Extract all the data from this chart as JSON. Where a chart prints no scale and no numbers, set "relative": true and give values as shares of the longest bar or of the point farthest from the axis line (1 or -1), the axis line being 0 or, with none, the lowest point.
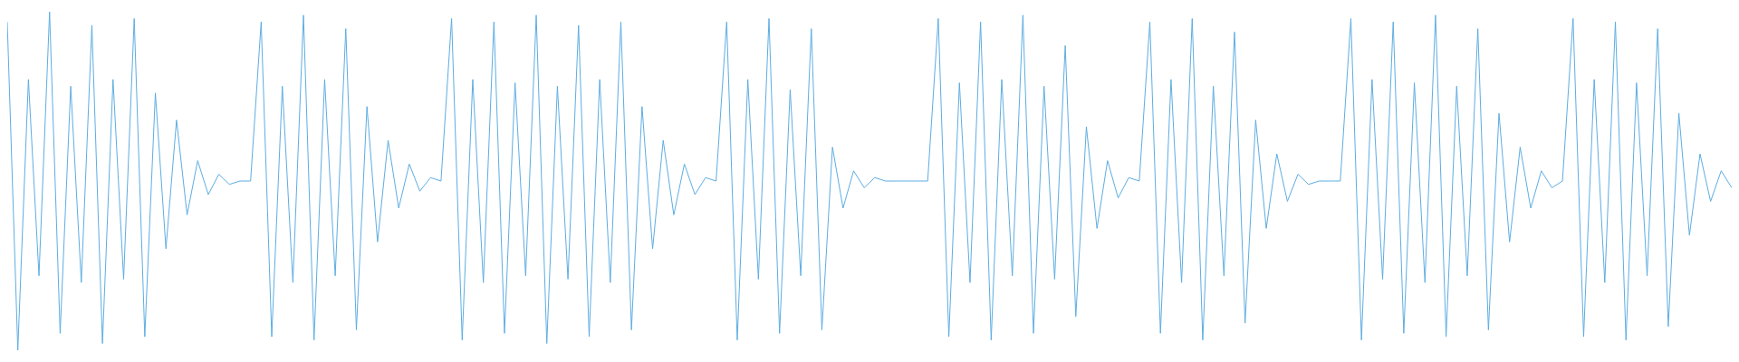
{
  "chart_data": {
    "type": "line",
    "relative": true,
    "color": "#5dade2",
    "marker": "none",
    "values": [
      0.97,
      0.0,
      0.8,
      0.22,
      1.0,
      0.05,
      0.78,
      0.2,
      0.96,
      0.02,
      0.8,
      0.21,
      0.98,
      0.04,
      0.76,
      0.3,
      0.68,
      0.4,
      0.56,
      0.46,
      0.52,
      0.49,
      0.5,
      0.5,
      0.97,
      0.04,
      0.78,
      0.2,
      0.99,
      0.03,
      0.8,
      0.22,
      0.95,
      0.06,
      0.72,
      0.32,
      0.62,
      0.42,
      0.55,
      0.47,
      0.51,
      0.5,
      0.98,
      0.03,
      0.8,
      0.2,
      0.97,
      0.05,
      0.79,
      0.22,
      0.99,
      0.02,
      0.78,
      0.21,
      0.96,
      0.04,
      0.8,
      0.2,
      0.97,
      0.06,
      0.72,
      0.3,
      0.62,
      0.4,
      0.55,
      0.46,
      0.51,
      0.5,
      0.97,
      0.03,
      0.8,
      0.21,
      0.98,
      0.05,
      0.77,
      0.22,
      0.95,
      0.06,
      0.6,
      0.42,
      0.53,
      0.48,
      0.51,
      0.5,
      0.5,
      0.5,
      0.5,
      0.5,
      0.98,
      0.04,
      0.79,
      0.2,
      0.97,
      0.03,
      0.8,
      0.22,
      0.99,
      0.05,
      0.78,
      0.21,
      0.9,
      0.1,
      0.66,
      0.36,
      0.56,
      0.45,
      0.51,
      0.5,
      0.97,
      0.05,
      0.8,
      0.2,
      0.98,
      0.03,
      0.78,
      0.22,
      0.94,
      0.08,
      0.68,
      0.36,
      0.58,
      0.44,
      0.52,
      0.49,
      0.5,
      0.5,
      0.5,
      0.98,
      0.03,
      0.8,
      0.21,
      0.97,
      0.05,
      0.79,
      0.2,
      0.99,
      0.04,
      0.78,
      0.22,
      0.95,
      0.06,
      0.7,
      0.32,
      0.6,
      0.42,
      0.53,
      0.48,
      0.5,
      0.98,
      0.04,
      0.8,
      0.2,
      0.97,
      0.03,
      0.79,
      0.22,
      0.95,
      0.07,
      0.7,
      0.34,
      0.58,
      0.44,
      0.53,
      0.48
    ]
  }
}
